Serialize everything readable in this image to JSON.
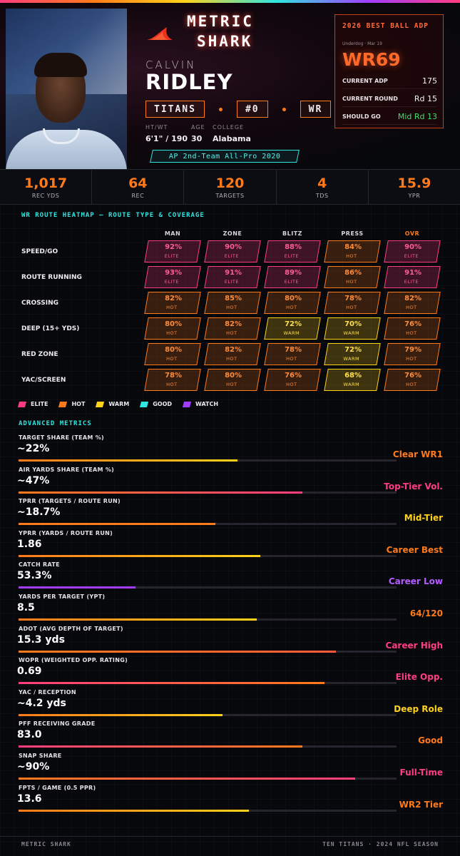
{
  "brand": {
    "line1": "METRIC",
    "line2": "SHARK"
  },
  "player": {
    "first_name": "CALVIN",
    "last_name": "RIDLEY",
    "team": "TITANS",
    "number": "#0",
    "position": "WR",
    "bio_labels": {
      "htwt": "HT/WT",
      "age": "AGE",
      "college": "COLLEGE"
    },
    "htwt": "6'1\" / 190",
    "age": "30",
    "college": "Alabama",
    "award": "AP 2nd-Team All-Pro 2020"
  },
  "adp_card": {
    "title": "2026 BEST BALL ADP",
    "source": "Underdog · Mar 19",
    "rank": "WR69",
    "rows": [
      {
        "label": "CURRENT ADP",
        "value": "175",
        "color": "#f2f2f2"
      },
      {
        "label": "CURRENT ROUND",
        "value": "Rd 15",
        "color": "#f2f2f2"
      },
      {
        "label": "SHOULD GO",
        "value": "Mid Rd 13",
        "color": "#3fe06a"
      }
    ]
  },
  "stats": [
    {
      "value": "1,017",
      "label": "REC YDS"
    },
    {
      "value": "64",
      "label": "REC"
    },
    {
      "value": "120",
      "label": "TARGETS"
    },
    {
      "value": "4",
      "label": "TDS"
    },
    {
      "value": "15.9",
      "label": "YPR"
    }
  ],
  "heatmap": {
    "title": "WR ROUTE HEATMAP — ROUTE TYPE & COVERAGE",
    "columns": [
      "MAN",
      "ZONE",
      "BLITZ",
      "PRESS",
      "OVR"
    ],
    "rows": [
      {
        "label": "SPEED/GO",
        "cells": [
          {
            "pct": "92%",
            "tier": "ELITE",
            "cls": "elite"
          },
          {
            "pct": "90%",
            "tier": "ELITE",
            "cls": "elite"
          },
          {
            "pct": "88%",
            "tier": "ELITE",
            "cls": "elite"
          },
          {
            "pct": "84%",
            "tier": "HOT",
            "cls": "hot"
          },
          {
            "pct": "90%",
            "tier": "ELITE",
            "cls": "elite"
          }
        ]
      },
      {
        "label": "ROUTE RUNNING",
        "cells": [
          {
            "pct": "93%",
            "tier": "ELITE",
            "cls": "elite"
          },
          {
            "pct": "91%",
            "tier": "ELITE",
            "cls": "elite"
          },
          {
            "pct": "89%",
            "tier": "ELITE",
            "cls": "elite"
          },
          {
            "pct": "86%",
            "tier": "HOT",
            "cls": "hot"
          },
          {
            "pct": "91%",
            "tier": "ELITE",
            "cls": "elite"
          }
        ]
      },
      {
        "label": "CROSSING",
        "cells": [
          {
            "pct": "82%",
            "tier": "HOT",
            "cls": "hot"
          },
          {
            "pct": "85%",
            "tier": "HOT",
            "cls": "hot"
          },
          {
            "pct": "80%",
            "tier": "HOT",
            "cls": "hot"
          },
          {
            "pct": "78%",
            "tier": "HOT",
            "cls": "hot"
          },
          {
            "pct": "82%",
            "tier": "HOT",
            "cls": "hot"
          }
        ]
      },
      {
        "label": "DEEP (15+ YDS)",
        "cells": [
          {
            "pct": "80%",
            "tier": "HOT",
            "cls": "hot"
          },
          {
            "pct": "82%",
            "tier": "HOT",
            "cls": "hot"
          },
          {
            "pct": "72%",
            "tier": "WARM",
            "cls": "warm"
          },
          {
            "pct": "70%",
            "tier": "WARM",
            "cls": "warm"
          },
          {
            "pct": "76%",
            "tier": "HOT",
            "cls": "hot"
          }
        ]
      },
      {
        "label": "RED ZONE",
        "cells": [
          {
            "pct": "80%",
            "tier": "HOT",
            "cls": "hot"
          },
          {
            "pct": "82%",
            "tier": "HOT",
            "cls": "hot"
          },
          {
            "pct": "78%",
            "tier": "HOT",
            "cls": "hot"
          },
          {
            "pct": "72%",
            "tier": "WARM",
            "cls": "warm"
          },
          {
            "pct": "79%",
            "tier": "HOT",
            "cls": "hot"
          }
        ]
      },
      {
        "label": "YAC/SCREEN",
        "cells": [
          {
            "pct": "78%",
            "tier": "HOT",
            "cls": "hot"
          },
          {
            "pct": "80%",
            "tier": "HOT",
            "cls": "hot"
          },
          {
            "pct": "76%",
            "tier": "HOT",
            "cls": "hot"
          },
          {
            "pct": "68%",
            "tier": "WARM",
            "cls": "warm"
          },
          {
            "pct": "76%",
            "tier": "HOT",
            "cls": "hot"
          }
        ]
      }
    ]
  },
  "legend": [
    {
      "label": "ELITE",
      "color": "#ff3d7f"
    },
    {
      "label": "HOT",
      "color": "#ff7a1a"
    },
    {
      "label": "WARM",
      "color": "#ffd21a"
    },
    {
      "label": "GOOD",
      "color": "#2fe6e0"
    },
    {
      "label": "WATCH",
      "color": "#a23dff"
    }
  ],
  "advanced": {
    "title": "ADVANCED METRICS",
    "metrics": [
      {
        "label": "TARGET SHARE (TEAM %)",
        "value": "~22%",
        "fill": 0.58,
        "gradient": [
          "#ff7a1a",
          "#ffd21a"
        ],
        "tag": "Clear WR1",
        "tag_color": "#ff7a1a"
      },
      {
        "label": "AIR YARDS SHARE (TEAM %)",
        "value": "~47%",
        "fill": 0.75,
        "gradient": [
          "#ff7a1a",
          "#ff3d7f"
        ],
        "tag": "Top-Tier Vol.",
        "tag_color": "#ff3d7f"
      },
      {
        "label": "TPRR (TARGETS / ROUTE RUN)",
        "value": "~18.7%",
        "fill": 0.52,
        "gradient": [
          "#ff7a1a",
          "#ff7a1a"
        ],
        "tag": "Mid-Tier",
        "tag_color": "#ffd21a"
      },
      {
        "label": "YPRR (YARDS / ROUTE RUN)",
        "value": "1.86",
        "fill": 0.64,
        "gradient": [
          "#ff7a1a",
          "#ffd21a"
        ],
        "tag": "Career Best",
        "tag_color": "#ff7a1a"
      },
      {
        "label": "CATCH RATE",
        "value": "53.3%",
        "fill": 0.31,
        "gradient": [
          "#a23dff",
          "#a23dff"
        ],
        "tag": "Career Low",
        "tag_color": "#b45cff"
      },
      {
        "label": "YARDS PER TARGET (YPT)",
        "value": "8.5",
        "fill": 0.63,
        "gradient": [
          "#ff7a1a",
          "#ffd21a"
        ],
        "tag": "64/120",
        "tag_color": "#ff7a1a"
      },
      {
        "label": "ADOT (AVG DEPTH OF TARGET)",
        "value": "15.3 yds",
        "fill": 0.84,
        "gradient": [
          "#ff7a1a",
          "#ff5a3a"
        ],
        "tag": "Career High",
        "tag_color": "#ff3d7f"
      },
      {
        "label": "WOPR (WEIGHTED OPP. RATING)",
        "value": "0.69",
        "fill": 0.81,
        "gradient": [
          "#ff3d7f",
          "#ff7a1a"
        ],
        "tag": "Elite Opp.",
        "tag_color": "#ff3d7f"
      },
      {
        "label": "YAC / RECEPTION",
        "value": "~4.2 yds",
        "fill": 0.54,
        "gradient": [
          "#ff7a1a",
          "#ffd21a"
        ],
        "tag": "Deep Role",
        "tag_color": "#ffd21a"
      },
      {
        "label": "PFF RECEIVING GRADE",
        "value": "83.0",
        "fill": 0.75,
        "gradient": [
          "#ff3d7f",
          "#ff7a1a"
        ],
        "tag": "Good",
        "tag_color": "#ff7a1a"
      },
      {
        "label": "SNAP SHARE",
        "value": "~90%",
        "fill": 0.89,
        "gradient": [
          "#ff7a1a",
          "#ff3d7f"
        ],
        "tag": "Full-Time",
        "tag_color": "#ff3d7f"
      },
      {
        "label": "FPTS / GAME (0.5 PPR)",
        "value": "13.6",
        "fill": 0.61,
        "gradient": [
          "#ff7a1a",
          "#ffd21a"
        ],
        "tag": "WR2 Tier",
        "tag_color": "#ff7a1a"
      }
    ]
  },
  "footer": {
    "left": "METRIC SHARK",
    "right": "TEN TITANS · 2024 NFL SEASON"
  }
}
